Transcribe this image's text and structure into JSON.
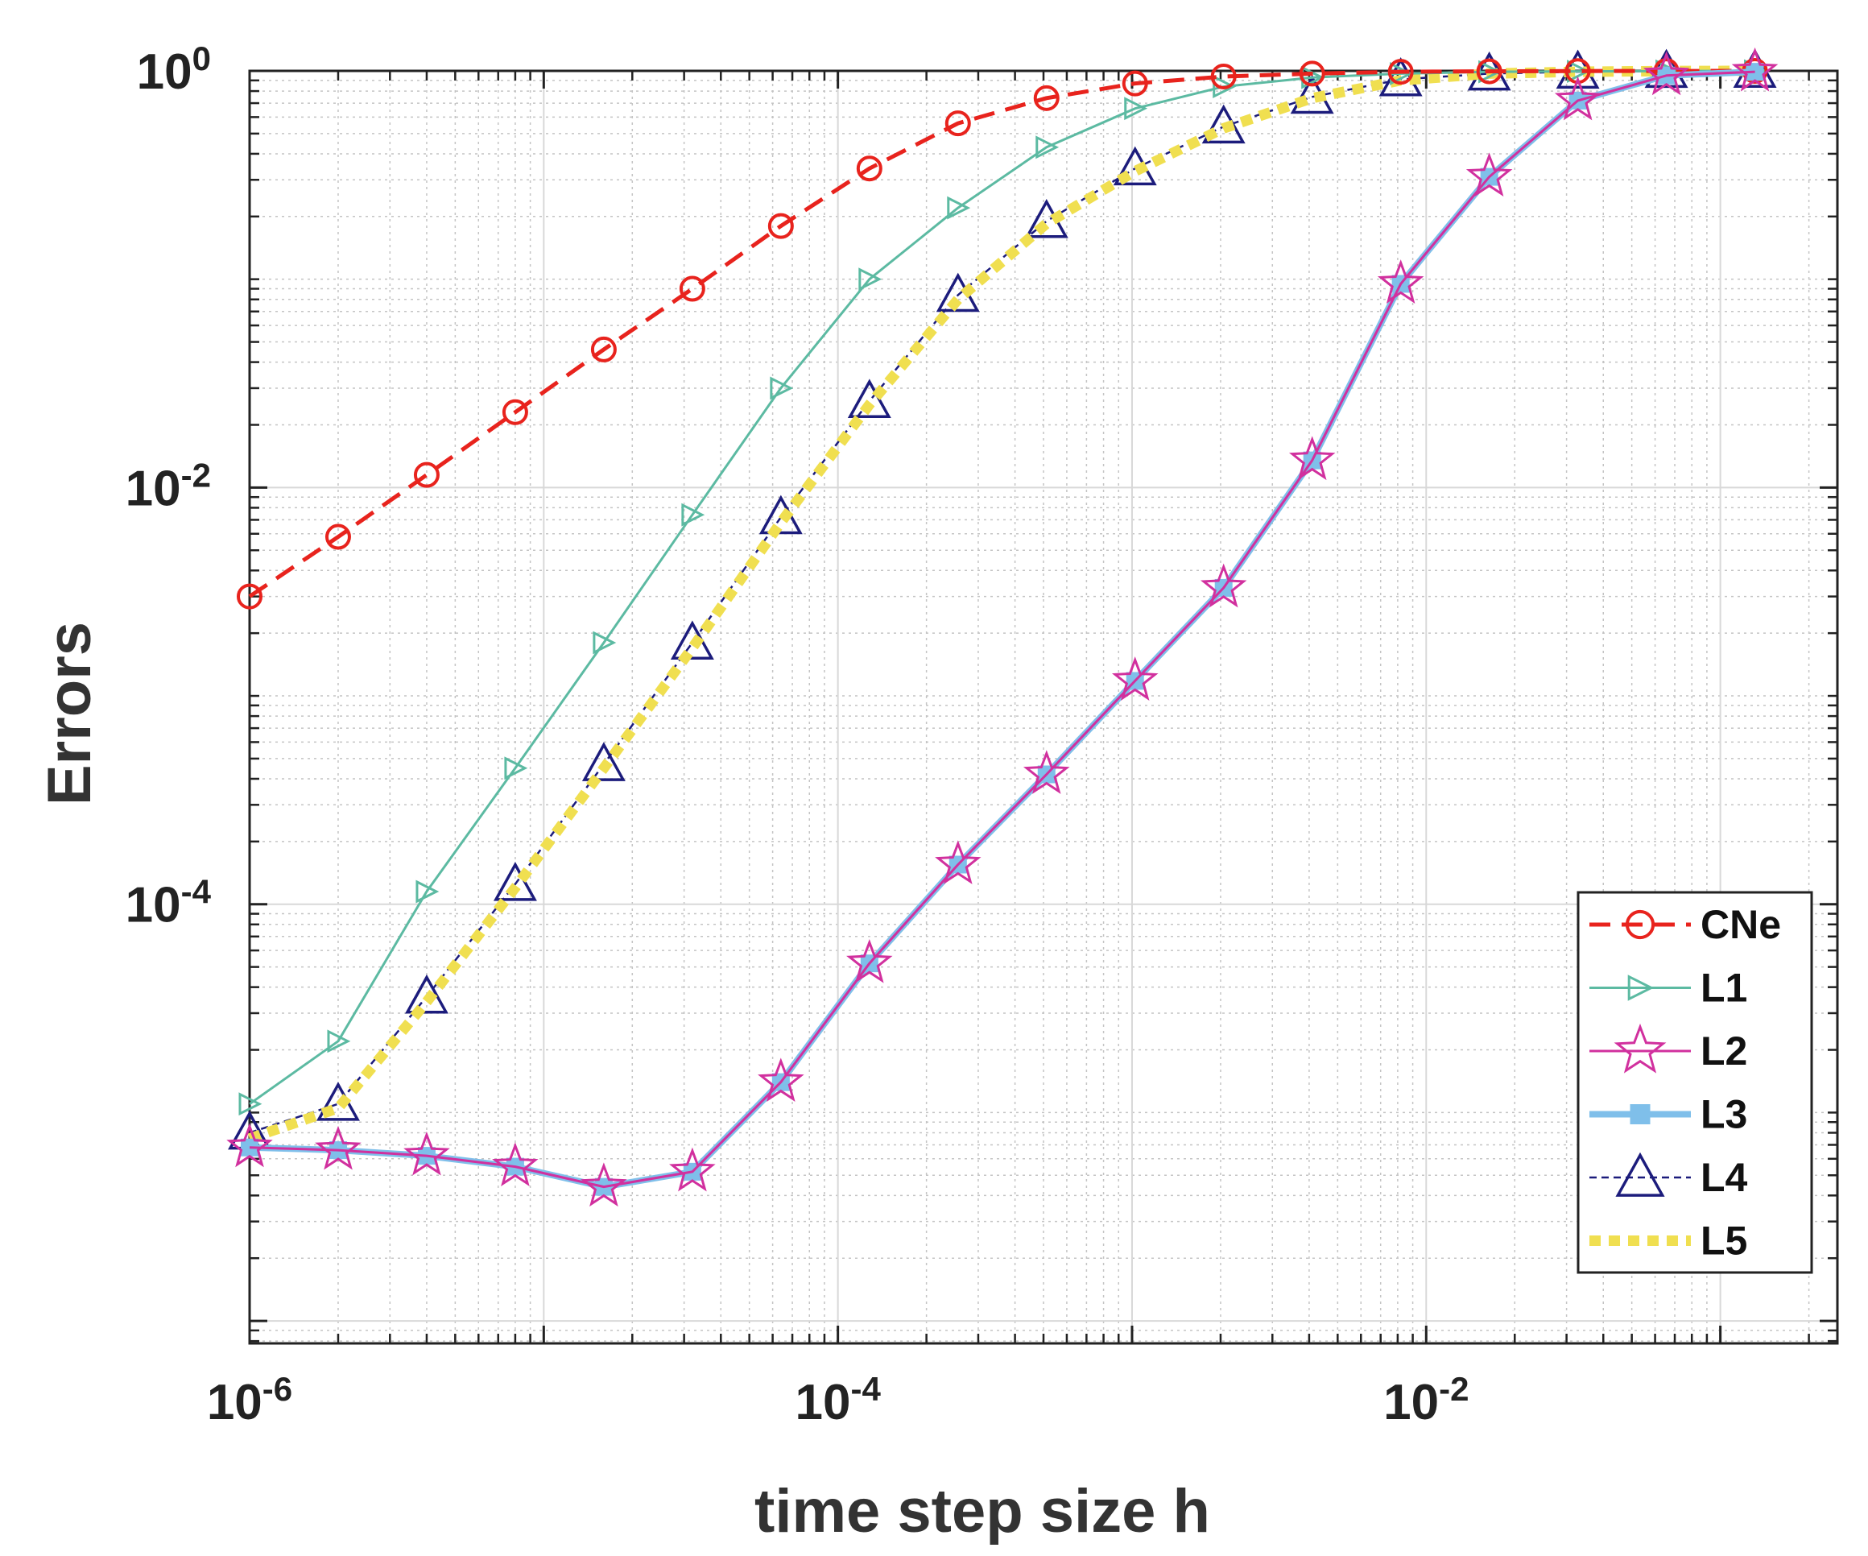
{
  "chart_data": {
    "type": "line",
    "scale": {
      "x": "log",
      "y": "log"
    },
    "xlabel": "time step size h",
    "ylabel": "Errors",
    "xlim": [
      1e-06,
      0.25
    ],
    "ylim": [
      7.8e-07,
      1.0
    ],
    "grid": true,
    "minor_grid": true,
    "legend_position": "bottom-right",
    "x_ticks": [
      {
        "value": 1e-06,
        "base": "10",
        "exp": "-6"
      },
      {
        "value": 0.0001,
        "base": "10",
        "exp": "-4"
      },
      {
        "value": 0.01,
        "base": "10",
        "exp": "-2"
      }
    ],
    "y_ticks": [
      {
        "value": 0.0001,
        "base": "10",
        "exp": "-4"
      },
      {
        "value": 0.01,
        "base": "10",
        "exp": "-2"
      },
      {
        "value": 1,
        "base": "10",
        "exp": "0"
      }
    ],
    "x": [
      1e-06,
      2e-06,
      4e-06,
      8e-06,
      1.6e-05,
      3.2e-05,
      6.4e-05,
      0.000128,
      0.000256,
      0.000512,
      0.001024,
      0.002048,
      0.004096,
      0.008192,
      0.016384,
      0.032768,
      0.065536,
      0.131072
    ],
    "series": [
      {
        "name": "CNe",
        "color": "#e8231d",
        "marker": "circle-icon",
        "line": "dashed",
        "values": [
          0.003,
          0.0058,
          0.0115,
          0.023,
          0.046,
          0.09,
          0.18,
          0.34,
          0.56,
          0.74,
          0.87,
          0.94,
          0.97,
          0.99,
          0.995,
          0.998,
          0.999,
          1.0
        ]
      },
      {
        "name": "L1",
        "color": "#5cbaa2",
        "marker": "triangle-right-icon",
        "line": "solid",
        "values": [
          1.1e-05,
          2.2e-05,
          0.000115,
          0.00045,
          0.0018,
          0.0074,
          0.03,
          0.1,
          0.22,
          0.43,
          0.66,
          0.84,
          0.93,
          0.97,
          0.99,
          0.995,
          0.998,
          1.0
        ]
      },
      {
        "name": "L2",
        "color": "#d1309e",
        "marker": "star-icon",
        "line": "solid",
        "values": [
          6.8e-06,
          6.6e-06,
          6.2e-06,
          5.5e-06,
          4.4e-06,
          5.2e-06,
          1.4e-05,
          5.2e-05,
          0.000155,
          0.00042,
          0.00118,
          0.0033,
          0.0135,
          0.095,
          0.31,
          0.72,
          0.95,
          0.99
        ]
      },
      {
        "name": "L3",
        "color": "#7fbfea",
        "marker": "square-icon",
        "line": "solid-thick",
        "values": [
          6.8e-06,
          6.6e-06,
          6.2e-06,
          5.5e-06,
          4.4e-06,
          5.2e-06,
          1.4e-05,
          5.2e-05,
          0.000155,
          0.00042,
          0.00118,
          0.0033,
          0.0135,
          0.095,
          0.31,
          0.72,
          0.95,
          0.99
        ]
      },
      {
        "name": "L4",
        "color": "#1c1c7c",
        "marker": "triangle-up-icon",
        "line": "dashed-thin",
        "values": [
          8e-06,
          1.1e-05,
          3.6e-05,
          0.000125,
          0.00047,
          0.0018,
          0.0072,
          0.026,
          0.084,
          0.19,
          0.34,
          0.54,
          0.75,
          0.91,
          0.97,
          0.99,
          0.998,
          1.0
        ]
      },
      {
        "name": "L5",
        "color": "#f0df50",
        "marker": "none",
        "line": "dotted-thick",
        "values": [
          7.5e-06,
          1.05e-05,
          3.4e-05,
          0.00012,
          0.00045,
          0.0017,
          0.0068,
          0.025,
          0.08,
          0.185,
          0.33,
          0.53,
          0.74,
          0.9,
          0.97,
          0.99,
          0.998,
          1.0
        ]
      }
    ]
  }
}
